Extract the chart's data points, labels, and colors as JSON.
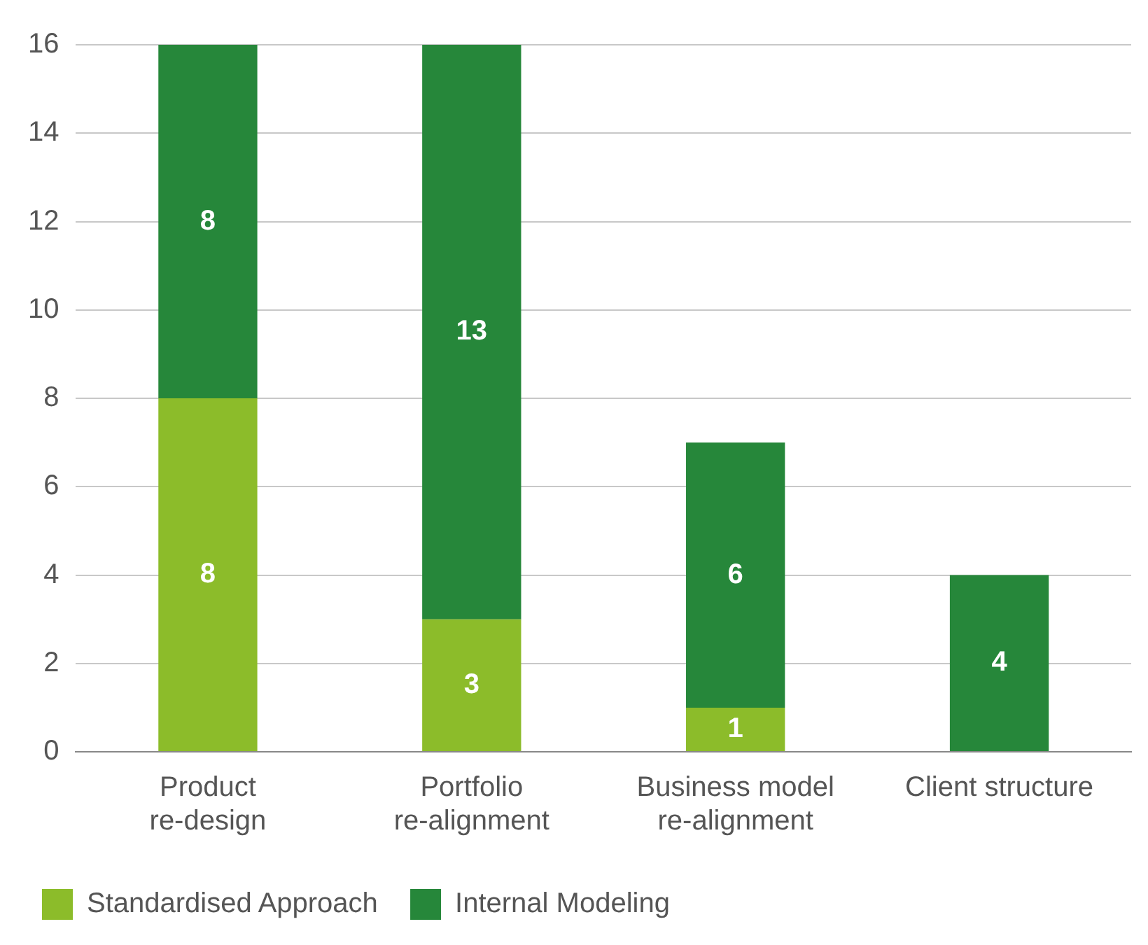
{
  "chart_data": {
    "type": "bar",
    "stacked": true,
    "categories": [
      "Product re-design",
      "Portfolio re-alignment",
      "Business model re-alignment",
      "Client structure"
    ],
    "series": [
      {
        "name": "Standardised Approach",
        "color": "#8cbc2a",
        "values": [
          8,
          3,
          1,
          null
        ]
      },
      {
        "name": "Internal Modeling",
        "color": "#26873a",
        "values": [
          8,
          13,
          6,
          4
        ]
      }
    ],
    "ylim": [
      0,
      16
    ],
    "yticks": [
      0,
      2,
      4,
      6,
      8,
      10,
      12,
      14,
      16
    ],
    "grid": "y",
    "legend": "bottom left",
    "data_labels": true
  }
}
